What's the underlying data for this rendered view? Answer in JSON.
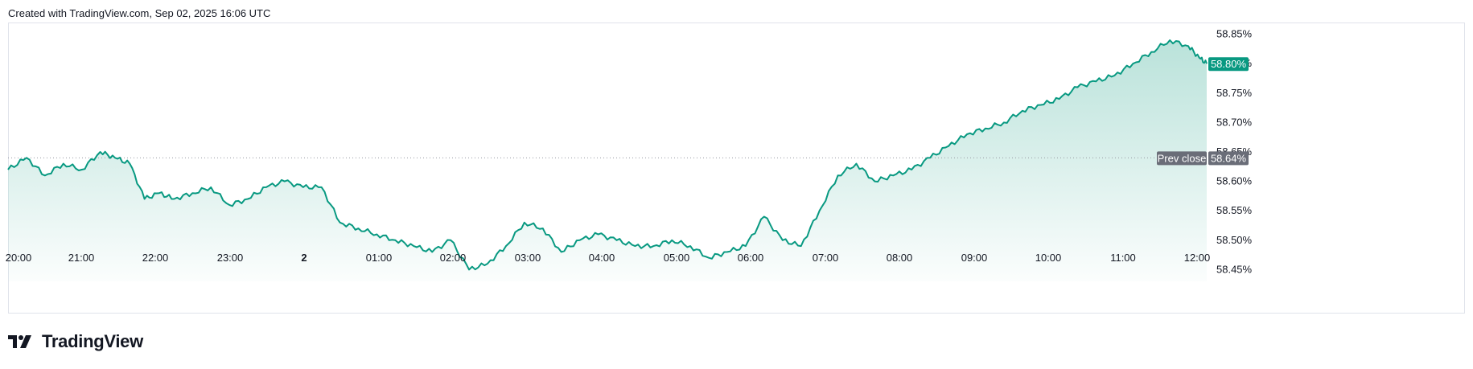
{
  "header": {
    "created_text": "Created with TradingView.com, Sep 02, 2025 16:06 UTC"
  },
  "brand": {
    "name": "TradingView",
    "logo_icon": "tradingview-logo-icon"
  },
  "colors": {
    "line": "#089981",
    "fill_top": "#b2dfd6",
    "prev_close_tag": "#6a6d78",
    "grid_border": "#e0e3eb"
  },
  "chart_data": {
    "type": "area",
    "x_ticks": [
      "20:00",
      "21:00",
      "22:00",
      "23:00",
      "2",
      "01:00",
      "02:00",
      "03:00",
      "04:00",
      "05:00",
      "06:00",
      "07:00",
      "08:00",
      "09:00",
      "10:00",
      "11:00",
      "12:00"
    ],
    "y_ticks": [
      "58.45%",
      "58.50%",
      "58.55%",
      "58.60%",
      "58.65%",
      "58.70%",
      "58.75%",
      "58.80%",
      "58.85%"
    ],
    "ylim": [
      58.43,
      58.87
    ],
    "last_value": 58.8,
    "last_value_label": "58.80%",
    "prev_close": 58.64,
    "prev_close_label": "Prev close",
    "prev_close_value_label": "58.64%",
    "x": [
      19.75,
      20.0,
      20.25,
      20.5,
      20.75,
      21.0,
      21.2,
      21.4,
      21.6,
      21.8,
      22.0,
      22.25,
      22.5,
      22.75,
      23.0,
      23.25,
      23.5,
      23.75,
      24.0,
      24.25,
      24.5,
      24.75,
      25.0,
      25.25,
      25.5,
      25.75,
      26.0,
      26.25,
      26.5,
      26.75,
      27.0,
      27.25,
      27.5,
      27.75,
      28.0,
      28.25,
      28.5,
      28.75,
      29.0,
      29.25,
      29.5,
      29.75,
      30.0,
      30.25,
      30.5,
      30.75,
      31.0,
      31.25,
      31.5,
      31.75,
      32.0,
      32.25,
      32.5,
      32.75,
      33.0,
      33.25,
      33.5,
      33.75,
      34.0,
      34.25,
      34.5,
      34.75,
      35.0,
      35.25,
      35.5,
      35.75,
      35.9,
      36.0
    ],
    "y": [
      58.62,
      58.64,
      58.61,
      58.63,
      58.62,
      58.65,
      58.64,
      58.63,
      58.57,
      58.58,
      58.57,
      58.58,
      58.59,
      58.56,
      58.57,
      58.59,
      58.6,
      58.59,
      58.59,
      58.53,
      58.52,
      58.51,
      58.5,
      58.49,
      58.48,
      58.5,
      58.45,
      58.46,
      58.49,
      58.53,
      58.52,
      58.48,
      58.5,
      58.51,
      58.5,
      58.49,
      58.49,
      58.5,
      58.49,
      58.47,
      58.48,
      58.49,
      58.54,
      58.5,
      58.49,
      58.55,
      58.61,
      58.63,
      58.6,
      58.61,
      58.62,
      58.64,
      58.66,
      58.68,
      58.69,
      58.7,
      58.72,
      58.73,
      58.74,
      58.76,
      58.77,
      58.78,
      58.8,
      58.82,
      58.84,
      58.83,
      58.81,
      58.8
    ]
  }
}
